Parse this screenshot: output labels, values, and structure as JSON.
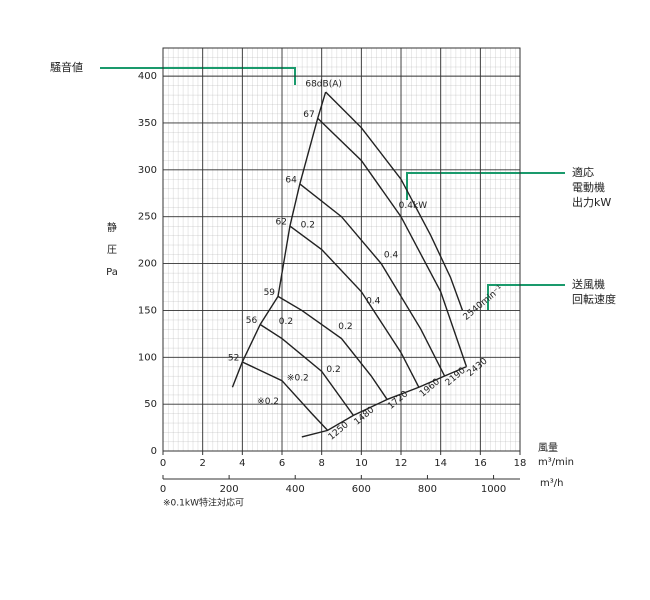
{
  "chart_data": {
    "type": "line",
    "y_label": [
      "静",
      "圧",
      "Pa"
    ],
    "x_label": [
      "風量",
      "m³/min"
    ],
    "x2_label": "m³/h",
    "note": "※0.1kW特注対応可",
    "xlim": [
      0,
      18
    ],
    "xticks": [
      0,
      2,
      4,
      6,
      8,
      10,
      12,
      14,
      16,
      18
    ],
    "x2lim": [
      0,
      1080
    ],
    "x2ticks": [
      0,
      200,
      400,
      600,
      800,
      1000
    ],
    "ylim": [
      0,
      430
    ],
    "yticks": [
      0,
      50,
      100,
      150,
      200,
      250,
      300,
      350,
      400
    ],
    "grid": true,
    "color": "#222222",
    "series": [
      {
        "name": "2540min⁻¹",
        "noise": "68dB(A)",
        "x": [
          8.2,
          10,
          12,
          13.5,
          14.5,
          15.1
        ],
        "values": [
          383,
          345,
          290,
          230,
          185,
          150
        ]
      },
      {
        "name": "2430",
        "noise": "67",
        "x": [
          7.8,
          10,
          12,
          14,
          15.3
        ],
        "values": [
          355,
          310,
          250,
          170,
          90
        ]
      },
      {
        "name": "2190",
        "noise": "64",
        "x": [
          6.9,
          9,
          11,
          13,
          14.2
        ],
        "values": [
          285,
          250,
          200,
          130,
          80
        ]
      },
      {
        "name": "1960",
        "noise": "62",
        "x": [
          6.4,
          8,
          10,
          12,
          12.9
        ],
        "values": [
          240,
          215,
          170,
          105,
          68
        ]
      },
      {
        "name": "1720",
        "noise": "59",
        "x": [
          5.8,
          7,
          9,
          10.5,
          11.3
        ],
        "values": [
          165,
          150,
          120,
          80,
          55
        ]
      },
      {
        "name": "1480",
        "noise": "56",
        "x": [
          4.9,
          6,
          8,
          9.6
        ],
        "values": [
          135,
          120,
          85,
          38
        ]
      },
      {
        "name": "1250",
        "noise": "52",
        "x": [
          4,
          6,
          7.5,
          8.3
        ],
        "values": [
          95,
          75,
          40,
          22
        ]
      }
    ],
    "boundary_left": {
      "x": [
        3.5,
        4,
        4.9,
        5.8,
        6.4,
        6.9,
        7.8,
        8.2
      ],
      "values": [
        68,
        95,
        135,
        165,
        240,
        285,
        355,
        383
      ]
    },
    "boundary_bottom": {
      "x": [
        7,
        8.3,
        9.6,
        11.3,
        12.9,
        14.2,
        15.3
      ],
      "values": [
        15,
        22,
        38,
        55,
        68,
        80,
        90
      ]
    },
    "power_labels": [
      {
        "text": "0.4kW",
        "x": 12.6,
        "y": 262
      },
      {
        "text": "0.4",
        "x": 11.5,
        "y": 209
      },
      {
        "text": "0.4",
        "x": 10.6,
        "y": 160
      },
      {
        "text": "0.2",
        "x": 7.3,
        "y": 241
      },
      {
        "text": "0.2",
        "x": 6.2,
        "y": 138
      },
      {
        "text": "0.2",
        "x": 9.2,
        "y": 133
      },
      {
        "text": "0.2",
        "x": 8.6,
        "y": 87
      },
      {
        "text": "※0.2",
        "x": 6.8,
        "y": 78
      },
      {
        "text": "※0.2",
        "x": 5.3,
        "y": 53
      }
    ],
    "callouts": [
      {
        "lines": [
          "騒音値"
        ]
      },
      {
        "lines": [
          "適応",
          "電動機",
          "出力kW"
        ]
      },
      {
        "lines": [
          "送風機",
          "回転速度"
        ]
      }
    ]
  }
}
